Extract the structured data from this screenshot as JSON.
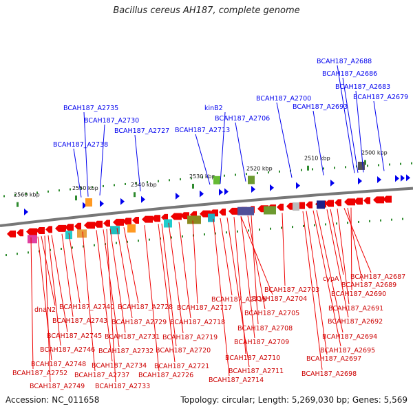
{
  "title": "Bacillus cereus AH187, complete genome",
  "footer": {
    "accession": "Accession: NC_011658",
    "summary": "Topology: circular; Length: 5,269,030 bp; Genes: 5,569"
  },
  "colors": {
    "forward": "#0000ee",
    "reverse": "#ee0000",
    "backbone": "#777777",
    "tick_green": "#2e8b2e"
  },
  "ticks": [
    {
      "label": "2560 kbp"
    },
    {
      "label": "2550 kbp"
    },
    {
      "label": "2540 kbp"
    },
    {
      "label": "2530 kbp"
    },
    {
      "label": "2520 kbp"
    },
    {
      "label": "2510 kbp"
    },
    {
      "label": "2500 kbp"
    }
  ],
  "forward_genes": [
    {
      "name": "BCAH187_A2688"
    },
    {
      "name": "BCAH187_A2686"
    },
    {
      "name": "BCAH187_A2683"
    },
    {
      "name": "BCAH187_A2679"
    },
    {
      "name": "BCAH187_A2700"
    },
    {
      "name": "BCAH187_A2693"
    },
    {
      "name": "BCAH187_A2735"
    },
    {
      "name": "kinB2"
    },
    {
      "name": "BCAH187_A2730"
    },
    {
      "name": "BCAH187_A2706"
    },
    {
      "name": "BCAH187_A2727"
    },
    {
      "name": "BCAH187_A2713"
    },
    {
      "name": "BCAH187_A2738"
    }
  ],
  "reverse_genes": [
    {
      "name": "BCAH187_A2687"
    },
    {
      "name": "cypA"
    },
    {
      "name": "BCAH187_A2689"
    },
    {
      "name": "BCAH187_A2703"
    },
    {
      "name": "BCAH187_A2690"
    },
    {
      "name": "BCAH187_A2715"
    },
    {
      "name": "BCAH187_A2704"
    },
    {
      "name": "BCAH187_A2740"
    },
    {
      "name": "BCAH187_A2728"
    },
    {
      "name": "BCAH187_A2717"
    },
    {
      "name": "BCAH187_A2691"
    },
    {
      "name": "dnaN2"
    },
    {
      "name": "BCAH187_A2705"
    },
    {
      "name": "BCAH187_A2743"
    },
    {
      "name": "BCAH187_A2729"
    },
    {
      "name": "BCAH187_A2718"
    },
    {
      "name": "BCAH187_A2692"
    },
    {
      "name": "BCAH187_A2708"
    },
    {
      "name": "BCAH187_A2745"
    },
    {
      "name": "BCAH187_A2731"
    },
    {
      "name": "BCAH187_A2719"
    },
    {
      "name": "BCAH187_A2694"
    },
    {
      "name": "BCAH187_A2709"
    },
    {
      "name": "BCAH187_A2746"
    },
    {
      "name": "BCAH187_A2732"
    },
    {
      "name": "BCAH187_A2720"
    },
    {
      "name": "BCAH187_A2695"
    },
    {
      "name": "BCAH187_A2710"
    },
    {
      "name": "BCAH187_A2748"
    },
    {
      "name": "BCAH187_A2734"
    },
    {
      "name": "BCAH187_A2721"
    },
    {
      "name": "BCAH187_A2697"
    },
    {
      "name": "BCAH187_A2752"
    },
    {
      "name": "BCAH187_A2737"
    },
    {
      "name": "BCAH187_A2726"
    },
    {
      "name": "BCAH187_A2711"
    },
    {
      "name": "BCAH187_A2698"
    },
    {
      "name": "BCAH187_A2714"
    },
    {
      "name": "BCAH187_A2749"
    },
    {
      "name": "BCAH187_A2733"
    }
  ]
}
